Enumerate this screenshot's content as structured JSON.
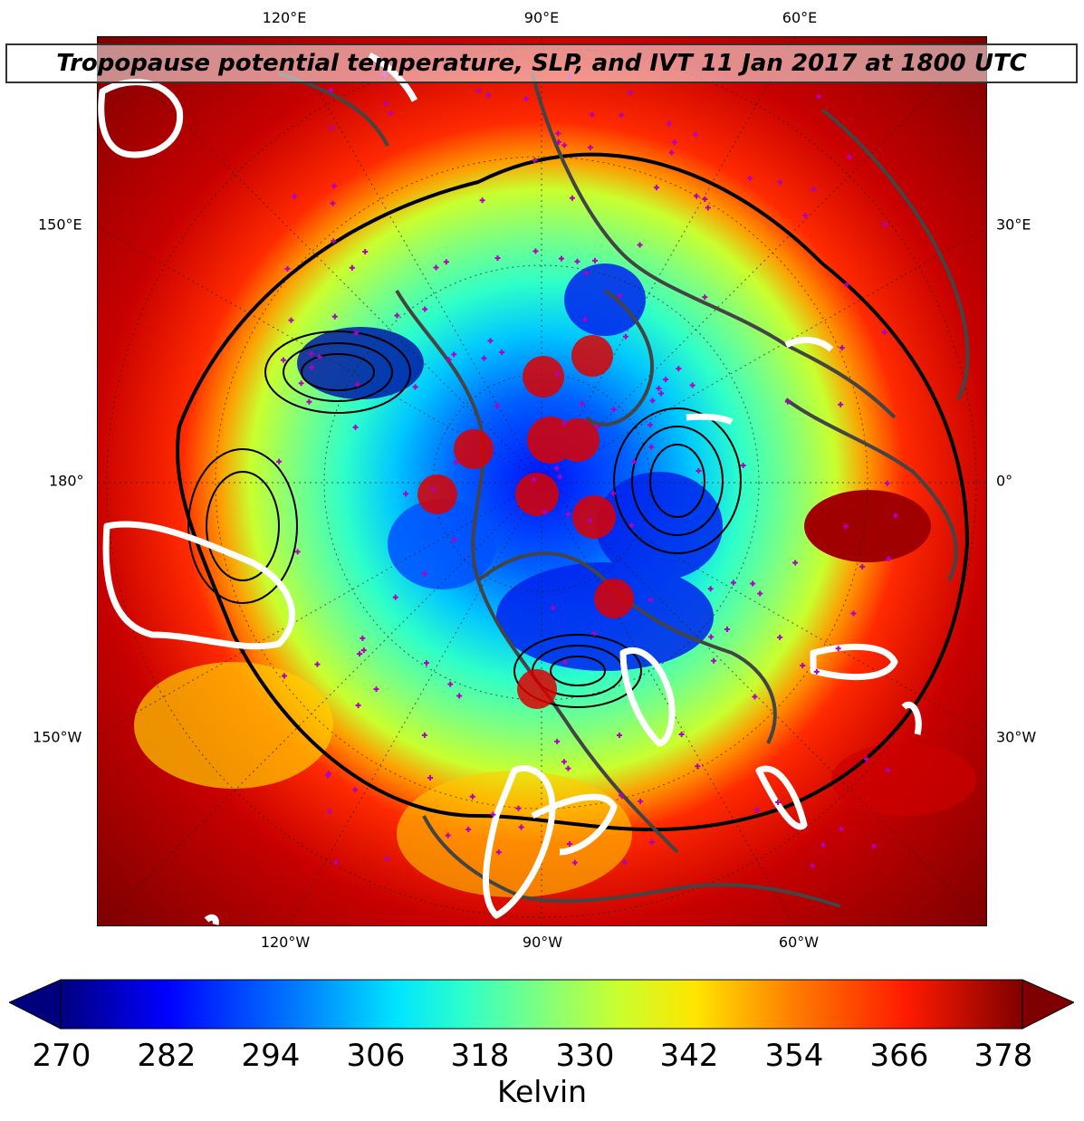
{
  "title": "Tropopause potential temperature, SLP, and IVT 11 Jan 2017 at 1800 UTC",
  "lon_labels": {
    "top": [
      "120°E",
      "90°E",
      "60°E"
    ],
    "bottom": [
      "120°W",
      "90°W",
      "60°W"
    ],
    "left": [
      "150°E",
      "180°",
      "150°W"
    ],
    "right": [
      "30°E",
      "0°",
      "30°W"
    ]
  },
  "colorbar": {
    "ticks": [
      "270",
      "282",
      "294",
      "306",
      "318",
      "330",
      "342",
      "354",
      "366",
      "378"
    ],
    "label": "Kelvin",
    "min": 270,
    "max": 378,
    "extend": "both",
    "colormap": "jet",
    "colors": [
      "#00007f",
      "#0000ff",
      "#007fff",
      "#00e5ff",
      "#2effc9",
      "#7fff7f",
      "#c9ff2e",
      "#ffe500",
      "#ff7f00",
      "#ff1a00",
      "#7f0000"
    ]
  },
  "map_colors": {
    "coast": "#444444",
    "station_marker": "#b000c0",
    "ivt_contour": "#ffffff",
    "slp_contour": "#000000",
    "red_dot": "#dd0000"
  }
}
